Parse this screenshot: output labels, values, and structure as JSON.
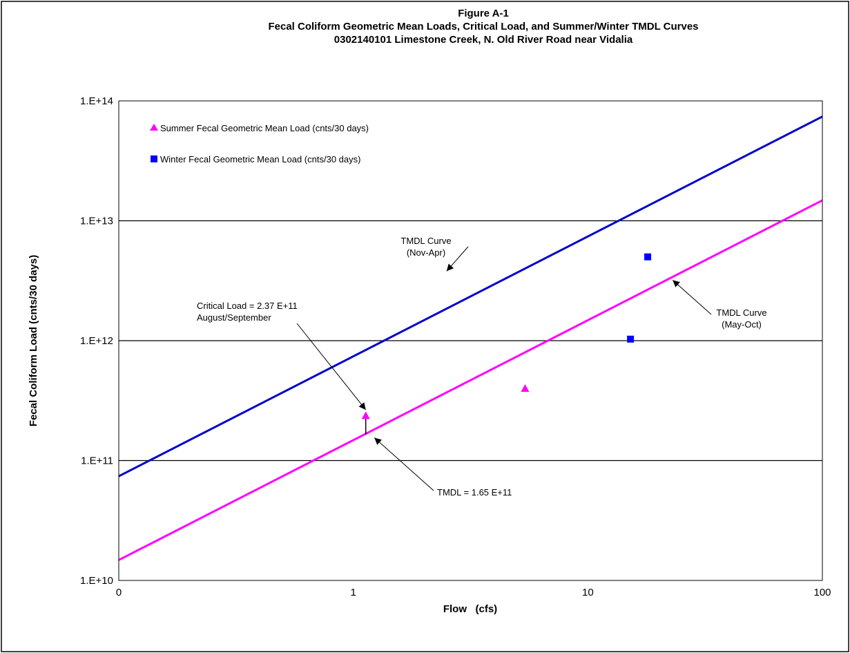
{
  "chart_data": {
    "type": "scatter",
    "title_lines": [
      "Figure A-1",
      "Fecal Coliform Geometric Mean Loads, Critical Load, and Summer/Winter TMDL Curves",
      "0302140101  Limestone Creek, N. Old River Road near Vidalia"
    ],
    "xlabel": "Flow   (cfs)",
    "ylabel": "Fecal Coliform Load (cnts/30 days)",
    "x_scale": "log",
    "y_scale": "log",
    "xlim": [
      0.1,
      100
    ],
    "ylim": [
      10000000000,
      100000000000000
    ],
    "x_ticks": [
      {
        "value": 0.1,
        "label": "0"
      },
      {
        "value": 1,
        "label": "1"
      },
      {
        "value": 10,
        "label": "10"
      },
      {
        "value": 100,
        "label": "100"
      }
    ],
    "y_ticks": [
      {
        "value": 10000000000,
        "label": "1.E+10"
      },
      {
        "value": 100000000000,
        "label": "1.E+11"
      },
      {
        "value": 1000000000000,
        "label": "1.E+12"
      },
      {
        "value": 10000000000000,
        "label": "1.E+13"
      },
      {
        "value": 100000000000000,
        "label": "1.E+14"
      }
    ],
    "grid": "horizontal",
    "legend_position": "top-left",
    "series": [
      {
        "name": "Summer Fecal Geometric Mean Load (cnts/30 days)",
        "marker": "triangle",
        "color": "#ff00ff",
        "points": [
          {
            "x": 1.13,
            "y": 237000000000
          },
          {
            "x": 5.4,
            "y": 400000000000
          }
        ]
      },
      {
        "name": "Winter Fecal Geometric Mean Load (cnts/30 days)",
        "marker": "square",
        "color": "#0000ff",
        "points": [
          {
            "x": 15.2,
            "y": 1030000000000
          },
          {
            "x": 18.0,
            "y": 5000000000000
          }
        ]
      }
    ],
    "lines": [
      {
        "label": "TMDL Curve (Nov-Apr)",
        "color": "#0000cc",
        "points": [
          {
            "x": 0.1,
            "y": 74000000000
          },
          {
            "x": 100,
            "y": 74000000000000
          }
        ]
      },
      {
        "label": "TMDL Curve (May-Oct)",
        "color": "#ff00ff",
        "points": [
          {
            "x": 0.1,
            "y": 14800000000
          },
          {
            "x": 100,
            "y": 14800000000000
          }
        ]
      }
    ],
    "critical_segment": {
      "x": 1.13,
      "y_top": 237000000000,
      "y_bottom": 165000000000
    },
    "annotations": [
      {
        "id": "nov_apr",
        "lines": [
          "TMDL Curve",
          "(Nov-Apr)"
        ],
        "arrow_to": {
          "x": 2.5,
          "y": 3800000000000
        }
      },
      {
        "id": "may_oct",
        "lines": [
          "TMDL Curve",
          "(May-Oct)"
        ],
        "arrow_to": {
          "x": 23,
          "y": 3200000000000
        }
      },
      {
        "id": "critical",
        "lines": [
          "Critical Load = 2.37 E+11",
          "August/September"
        ],
        "arrow_to": {
          "x": 1.13,
          "y": 265000000000
        }
      },
      {
        "id": "tmdl",
        "lines": [
          "TMDL = 1.65 E+11"
        ],
        "arrow_to": {
          "x": 1.23,
          "y": 155000000000
        }
      }
    ]
  }
}
